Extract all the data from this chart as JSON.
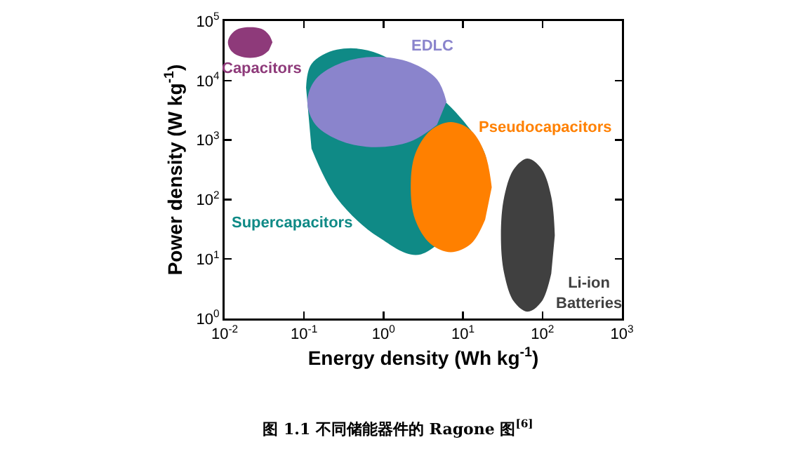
{
  "chart_data": {
    "type": "area",
    "title": "图 1.1 不同储能器件的 Ragone 图$^{[6]}$",
    "xlabel": "Energy density (Wh kg$^{-1}$)",
    "ylabel": "Power density (W kg$^{-1}$)",
    "log": "xy",
    "grid": false,
    "legend": false,
    "xlim": [
      0.01,
      1000
    ],
    "ylim": [
      1,
      100000
    ],
    "xticks": [
      {
        "value": 0.01,
        "label": "10$^{-2}$"
      },
      {
        "value": 0.1,
        "label": "10$^{-1}$"
      },
      {
        "value": 1,
        "label": "10$^{0}$"
      },
      {
        "value": 10,
        "label": "10$^{1}$"
      },
      {
        "value": 100,
        "label": "10$^{2}$"
      },
      {
        "value": 1000,
        "label": "10$^{3}$"
      }
    ],
    "yticks": [
      {
        "value": 1,
        "label": "10$^{0}$"
      },
      {
        "value": 10,
        "label": "10$^{1}$"
      },
      {
        "value": 100,
        "label": "10$^{2}$"
      },
      {
        "value": 1000,
        "label": "10$^{3}$"
      },
      {
        "value": 10000,
        "label": "10$^{4}$"
      },
      {
        "value": 100000,
        "label": "10$^{5}$"
      }
    ],
    "series": [
      {
        "name": "Capacitors",
        "color": "#8e3a7a",
        "x": [
          0.04,
          0.036,
          0.029,
          0.021,
          0.015,
          0.012,
          0.011,
          0.012,
          0.015,
          0.021,
          0.029,
          0.036
        ],
        "values": [
          44000,
          59000,
          74000,
          79000,
          74000,
          59000,
          44000,
          32000,
          26000,
          24000,
          26000,
          32000
        ]
      },
      {
        "name": "Supercapacitors",
        "color": "#0f8a86",
        "x": [
          0.106,
          0.124,
          0.259,
          0.88,
          10.1,
          20,
          2.97,
          0.88,
          0.259,
          0.124
        ],
        "values": [
          7600,
          19000,
          33000,
          28000,
          2100,
          320,
          12,
          23,
          105,
          720
        ]
      },
      {
        "name": "EDLC",
        "color": "#8a84cc",
        "x": [
          6.2,
          4.7,
          2.2,
          0.81,
          0.3,
          0.14,
          0.11,
          0.14,
          0.3,
          0.81,
          2.2,
          4.7
        ],
        "values": [
          4400,
          10500,
          20000,
          25000,
          20000,
          10500,
          4400,
          1800,
          950,
          760,
          950,
          1800
        ]
      },
      {
        "name": "Pseudocapacitors",
        "color": "#ff8000",
        "x": [
          23,
          19,
          12.6,
          7.0,
          3.9,
          2.5,
          2.2,
          2.5,
          3.9,
          7.0,
          12.6,
          19
        ],
        "values": [
          160,
          580,
          1450,
          2000,
          1450,
          580,
          160,
          46,
          18,
          13,
          18,
          46
        ]
      },
      {
        "name": "Li-ion Batteries",
        "color": "#404040",
        "x": [
          143,
          129,
          97,
          65,
          44,
          33,
          30,
          33,
          44,
          65,
          97,
          129
        ],
        "values": [
          25,
          111,
          330,
          490,
          330,
          111,
          25,
          5.7,
          1.9,
          1.3,
          1.9,
          5.7
        ]
      }
    ]
  }
}
